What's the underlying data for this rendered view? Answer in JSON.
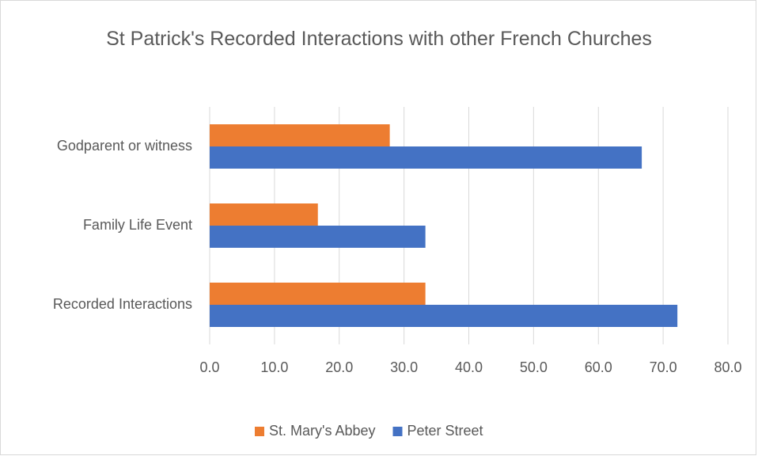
{
  "chart_data": {
    "type": "barh",
    "title": "St Patrick's Recorded Interactions with other French Churches",
    "categories": [
      "Recorded Interactions",
      "Family Life Event",
      "Godparent or witness"
    ],
    "series": [
      {
        "name": "St. Mary's Abbey",
        "color": "#ed7d31",
        "values": [
          33.3,
          16.7,
          27.8
        ]
      },
      {
        "name": "Peter Street",
        "color": "#4472c4",
        "values": [
          72.2,
          33.3,
          66.7
        ]
      }
    ],
    "xlim": [
      0,
      80
    ],
    "xticks": [
      {
        "value": 0,
        "label": "0.0"
      },
      {
        "value": 10,
        "label": "10.0"
      },
      {
        "value": 20,
        "label": "20.0"
      },
      {
        "value": 30,
        "label": "30.0"
      },
      {
        "value": 40,
        "label": "40.0"
      },
      {
        "value": 50,
        "label": "50.0"
      },
      {
        "value": 60,
        "label": "60.0"
      },
      {
        "value": 70,
        "label": "70.0"
      },
      {
        "value": 80,
        "label": "80.0"
      }
    ],
    "grid": true,
    "legend": "bottom"
  }
}
